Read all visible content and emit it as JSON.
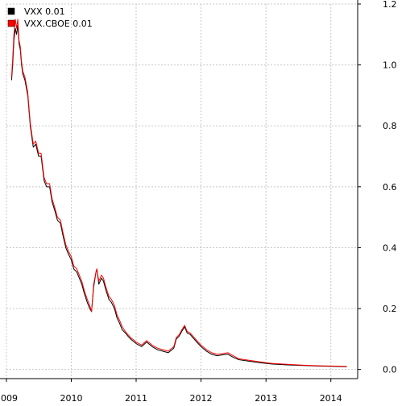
{
  "chart_data": {
    "type": "line",
    "title": "",
    "xlabel": "",
    "ylabel": "",
    "x_range": [
      "2009-01-01",
      "2014-06-01"
    ],
    "ylim": [
      -0.03,
      1.2
    ],
    "grid": true,
    "grid_style": "dotted",
    "y_axis_side": "right",
    "legend_position": "top-left",
    "x_ticks": [
      {
        "date": "2009-01-01",
        "label": "2009"
      },
      {
        "date": "2010-01-01",
        "label": "2010"
      },
      {
        "date": "2011-01-01",
        "label": "2011"
      },
      {
        "date": "2012-01-01",
        "label": "2012"
      },
      {
        "date": "2013-01-01",
        "label": "2013"
      },
      {
        "date": "2014-01-01",
        "label": "2014"
      }
    ],
    "y_ticks": [
      {
        "value": 0.0,
        "label": "0.0"
      },
      {
        "value": 0.2,
        "label": "0.2"
      },
      {
        "value": 0.4,
        "label": "0.4"
      },
      {
        "value": 0.6,
        "label": "0.6"
      },
      {
        "value": 0.8,
        "label": "0.8"
      },
      {
        "value": 1.0,
        "label": "1.0"
      },
      {
        "value": 1.2,
        "label": "1.2"
      }
    ],
    "series": [
      {
        "name": "VXX 0.01",
        "color": "#000000",
        "points": [
          [
            "2009-01-30",
            0.95
          ],
          [
            "2009-02-05",
            1.0
          ],
          [
            "2009-02-12",
            1.08
          ],
          [
            "2009-02-20",
            1.12
          ],
          [
            "2009-02-27",
            1.1
          ],
          [
            "2009-03-06",
            1.13
          ],
          [
            "2009-03-13",
            1.07
          ],
          [
            "2009-03-20",
            1.05
          ],
          [
            "2009-03-27",
            1.0
          ],
          [
            "2009-04-03",
            0.97
          ],
          [
            "2009-04-15",
            0.95
          ],
          [
            "2009-05-01",
            0.9
          ],
          [
            "2009-05-15",
            0.8
          ],
          [
            "2009-06-01",
            0.73
          ],
          [
            "2009-06-15",
            0.74
          ],
          [
            "2009-07-01",
            0.7
          ],
          [
            "2009-07-15",
            0.7
          ],
          [
            "2009-08-01",
            0.62
          ],
          [
            "2009-08-15",
            0.6
          ],
          [
            "2009-09-01",
            0.6
          ],
          [
            "2009-09-15",
            0.55
          ],
          [
            "2009-10-01",
            0.52
          ],
          [
            "2009-10-15",
            0.49
          ],
          [
            "2009-11-01",
            0.48
          ],
          [
            "2009-11-15",
            0.44
          ],
          [
            "2009-12-01",
            0.4
          ],
          [
            "2009-12-15",
            0.38
          ],
          [
            "2010-01-01",
            0.36
          ],
          [
            "2010-01-15",
            0.33
          ],
          [
            "2010-02-01",
            0.32
          ],
          [
            "2010-02-15",
            0.3
          ],
          [
            "2010-03-01",
            0.28
          ],
          [
            "2010-03-15",
            0.25
          ],
          [
            "2010-04-01",
            0.22
          ],
          [
            "2010-04-15",
            0.2
          ],
          [
            "2010-04-25",
            0.19
          ],
          [
            "2010-05-07",
            0.27
          ],
          [
            "2010-05-20",
            0.32
          ],
          [
            "2010-05-25",
            0.33
          ],
          [
            "2010-06-05",
            0.28
          ],
          [
            "2010-06-20",
            0.3
          ],
          [
            "2010-07-01",
            0.29
          ],
          [
            "2010-07-15",
            0.26
          ],
          [
            "2010-08-01",
            0.23
          ],
          [
            "2010-08-15",
            0.22
          ],
          [
            "2010-09-01",
            0.2
          ],
          [
            "2010-09-15",
            0.17
          ],
          [
            "2010-10-01",
            0.15
          ],
          [
            "2010-10-15",
            0.13
          ],
          [
            "2010-11-01",
            0.12
          ],
          [
            "2010-11-15",
            0.11
          ],
          [
            "2010-12-01",
            0.1
          ],
          [
            "2011-01-01",
            0.085
          ],
          [
            "2011-02-01",
            0.075
          ],
          [
            "2011-03-01",
            0.09
          ],
          [
            "2011-04-01",
            0.075
          ],
          [
            "2011-05-01",
            0.065
          ],
          [
            "2011-06-01",
            0.06
          ],
          [
            "2011-07-01",
            0.055
          ],
          [
            "2011-08-01",
            0.07
          ],
          [
            "2011-08-15",
            0.1
          ],
          [
            "2011-09-01",
            0.11
          ],
          [
            "2011-09-15",
            0.125
          ],
          [
            "2011-10-01",
            0.14
          ],
          [
            "2011-10-15",
            0.12
          ],
          [
            "2011-11-01",
            0.115
          ],
          [
            "2011-12-01",
            0.095
          ],
          [
            "2012-01-01",
            0.075
          ],
          [
            "2012-02-01",
            0.06
          ],
          [
            "2012-03-01",
            0.05
          ],
          [
            "2012-04-01",
            0.045
          ],
          [
            "2012-05-01",
            0.048
          ],
          [
            "2012-06-01",
            0.05
          ],
          [
            "2012-07-01",
            0.04
          ],
          [
            "2012-08-01",
            0.032
          ],
          [
            "2012-10-01",
            0.027
          ],
          [
            "2012-12-01",
            0.022
          ],
          [
            "2013-02-01",
            0.018
          ],
          [
            "2013-05-01",
            0.015
          ],
          [
            "2013-08-01",
            0.013
          ],
          [
            "2013-11-01",
            0.011
          ],
          [
            "2014-02-01",
            0.01
          ],
          [
            "2014-04-01",
            0.009
          ]
        ]
      },
      {
        "name": "VXX.CBOE 0.01",
        "color": "#ff0000",
        "points": [
          [
            "2009-01-30",
            0.96
          ],
          [
            "2009-02-05",
            1.02
          ],
          [
            "2009-02-12",
            1.1
          ],
          [
            "2009-02-20",
            1.15
          ],
          [
            "2009-02-27",
            1.12
          ],
          [
            "2009-03-06",
            1.15
          ],
          [
            "2009-03-13",
            1.08
          ],
          [
            "2009-03-20",
            1.06
          ],
          [
            "2009-03-27",
            1.01
          ],
          [
            "2009-04-03",
            0.98
          ],
          [
            "2009-04-15",
            0.96
          ],
          [
            "2009-05-01",
            0.91
          ],
          [
            "2009-05-15",
            0.81
          ],
          [
            "2009-06-01",
            0.74
          ],
          [
            "2009-06-15",
            0.75
          ],
          [
            "2009-07-01",
            0.71
          ],
          [
            "2009-07-15",
            0.71
          ],
          [
            "2009-08-01",
            0.63
          ],
          [
            "2009-08-15",
            0.61
          ],
          [
            "2009-09-01",
            0.61
          ],
          [
            "2009-09-15",
            0.56
          ],
          [
            "2009-10-01",
            0.53
          ],
          [
            "2009-10-15",
            0.5
          ],
          [
            "2009-11-01",
            0.49
          ],
          [
            "2009-11-15",
            0.45
          ],
          [
            "2009-12-01",
            0.41
          ],
          [
            "2009-12-15",
            0.39
          ],
          [
            "2010-01-01",
            0.37
          ],
          [
            "2010-01-15",
            0.34
          ],
          [
            "2010-02-01",
            0.33
          ],
          [
            "2010-02-15",
            0.31
          ],
          [
            "2010-03-01",
            0.29
          ],
          [
            "2010-03-15",
            0.26
          ],
          [
            "2010-04-01",
            0.23
          ],
          [
            "2010-04-15",
            0.21
          ],
          [
            "2010-04-25",
            0.19
          ],
          [
            "2010-05-07",
            0.28
          ],
          [
            "2010-05-20",
            0.32
          ],
          [
            "2010-05-25",
            0.33
          ],
          [
            "2010-06-05",
            0.29
          ],
          [
            "2010-06-20",
            0.31
          ],
          [
            "2010-07-01",
            0.3
          ],
          [
            "2010-07-15",
            0.27
          ],
          [
            "2010-08-01",
            0.24
          ],
          [
            "2010-08-15",
            0.23
          ],
          [
            "2010-09-01",
            0.21
          ],
          [
            "2010-09-15",
            0.18
          ],
          [
            "2010-10-01",
            0.16
          ],
          [
            "2010-10-15",
            0.14
          ],
          [
            "2010-11-01",
            0.125
          ],
          [
            "2010-11-15",
            0.115
          ],
          [
            "2010-12-01",
            0.105
          ],
          [
            "2011-01-01",
            0.09
          ],
          [
            "2011-02-01",
            0.08
          ],
          [
            "2011-03-01",
            0.095
          ],
          [
            "2011-04-01",
            0.08
          ],
          [
            "2011-05-01",
            0.07
          ],
          [
            "2011-06-01",
            0.065
          ],
          [
            "2011-07-01",
            0.06
          ],
          [
            "2011-08-01",
            0.075
          ],
          [
            "2011-08-15",
            0.105
          ],
          [
            "2011-09-01",
            0.115
          ],
          [
            "2011-09-15",
            0.13
          ],
          [
            "2011-10-01",
            0.145
          ],
          [
            "2011-10-15",
            0.125
          ],
          [
            "2011-11-01",
            0.12
          ],
          [
            "2011-12-01",
            0.1
          ],
          [
            "2012-01-01",
            0.08
          ],
          [
            "2012-02-01",
            0.065
          ],
          [
            "2012-03-01",
            0.055
          ],
          [
            "2012-04-01",
            0.05
          ],
          [
            "2012-05-01",
            0.052
          ],
          [
            "2012-06-01",
            0.055
          ],
          [
            "2012-07-01",
            0.045
          ],
          [
            "2012-08-01",
            0.035
          ],
          [
            "2012-10-01",
            0.03
          ],
          [
            "2012-12-01",
            0.025
          ],
          [
            "2013-02-01",
            0.02
          ],
          [
            "2013-05-01",
            0.017
          ],
          [
            "2013-08-01",
            0.014
          ],
          [
            "2013-11-01",
            0.012
          ],
          [
            "2014-02-01",
            0.011
          ],
          [
            "2014-04-01",
            0.01
          ]
        ]
      }
    ]
  }
}
